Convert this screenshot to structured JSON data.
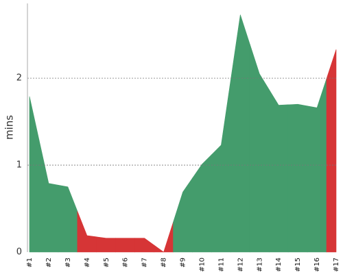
{
  "chart_data": {
    "type": "area",
    "y_label": "mins",
    "categories": [
      "#1",
      "#2",
      "#3",
      "#4",
      "#5",
      "#6",
      "#7",
      "#8",
      "#9",
      "#10",
      "#11",
      "#12",
      "#13",
      "#14",
      "#15",
      "#16",
      "#17"
    ],
    "values": [
      1.79,
      0.79,
      0.75,
      0.19,
      0.16,
      0.16,
      0.16,
      0,
      0.69,
      1.01,
      1.23,
      2.73,
      2.05,
      1.69,
      1.7,
      1.66,
      2.33
    ],
    "point_colors": [
      "#449c6c",
      "#449c6c",
      "#449c6c",
      "#d63536",
      "#d63536",
      "#d63536",
      "#d63536",
      "#d63536",
      "#449c6c",
      "#449c6c",
      "#449c6c",
      "#449c6c",
      "#449c6c",
      "#449c6c",
      "#449c6c",
      "#449c6c",
      "#d63536"
    ],
    "ylim": [
      0,
      2.86
    ],
    "yticks": [
      0,
      1,
      2
    ],
    "grid": true
  }
}
